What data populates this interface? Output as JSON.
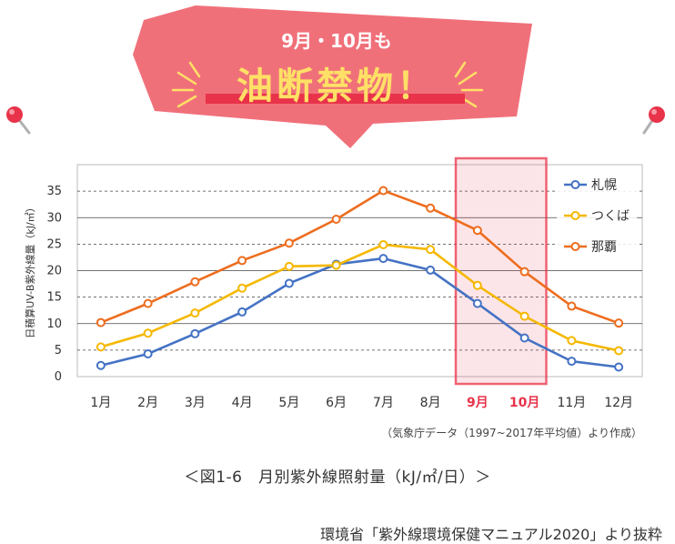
{
  "banner": {
    "subtitle": "9月・10月も",
    "headline": "油断禁物！",
    "fill_color": "#f0707a",
    "headline_color": "#ffe066"
  },
  "chart_data": {
    "type": "line",
    "ylabel": "日積算UV-B紫外線量（kJ/㎡）",
    "xlabel": "",
    "ylim": [
      0,
      40
    ],
    "yticks": [
      0,
      5,
      10,
      15,
      20,
      25,
      30,
      35
    ],
    "categories": [
      "1月",
      "2月",
      "3月",
      "4月",
      "5月",
      "6月",
      "7月",
      "8月",
      "9月",
      "10月",
      "11月",
      "12月"
    ],
    "highlight": {
      "categories": [
        "9月",
        "10月"
      ],
      "color": "#e8334a"
    },
    "legend_position": "top-right",
    "note": "（気象庁データ（1997~2017年平均値）より作成）",
    "series": [
      {
        "name": "札幌",
        "color": "#4472c4",
        "values": [
          2.1,
          4.3,
          8.1,
          12.2,
          17.6,
          21.2,
          22.3,
          20.1,
          13.8,
          7.3,
          2.9,
          1.8
        ]
      },
      {
        "name": "つくば",
        "color": "#f5b800",
        "values": [
          5.6,
          8.2,
          12.0,
          16.7,
          20.8,
          21.0,
          24.9,
          24.0,
          17.2,
          11.4,
          6.8,
          4.9
        ]
      },
      {
        "name": "那覇",
        "color": "#ed6d1f",
        "values": [
          10.2,
          13.8,
          17.9,
          21.9,
          25.2,
          29.7,
          35.1,
          31.8,
          27.6,
          19.8,
          13.3,
          10.1
        ]
      }
    ]
  },
  "caption": "＜図1-6　月別紫外線照射量（kJ/㎡/日）＞",
  "source": "環境省「紫外線環境保健マニュアル2020」より抜粋"
}
